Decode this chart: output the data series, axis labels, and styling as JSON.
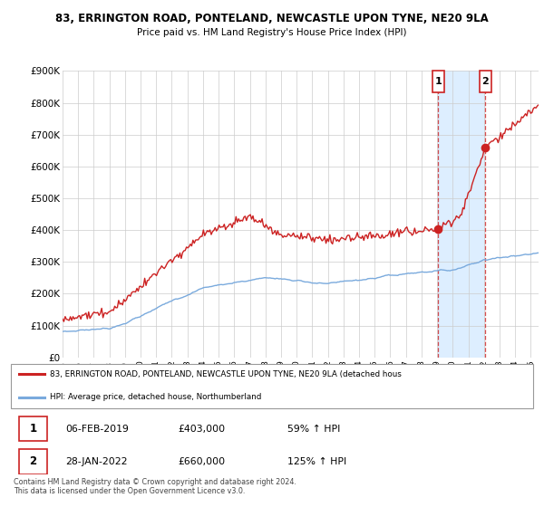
{
  "title": "83, ERRINGTON ROAD, PONTELAND, NEWCASTLE UPON TYNE, NE20 9LA",
  "subtitle": "Price paid vs. HM Land Registry's House Price Index (HPI)",
  "ylabel_ticks": [
    "£0",
    "£100K",
    "£200K",
    "£300K",
    "£400K",
    "£500K",
    "£600K",
    "£700K",
    "£800K",
    "£900K"
  ],
  "ylim": [
    0,
    900000
  ],
  "xlim_start": 1995.0,
  "xlim_end": 2025.5,
  "hpi_color": "#7aaadd",
  "price_color": "#cc2222",
  "shade_color": "#ddeeff",
  "marker1_date": 2019.08,
  "marker1_price": 403000,
  "marker2_date": 2022.08,
  "marker2_price": 660000,
  "legend_line1": "83, ERRINGTON ROAD, PONTELAND, NEWCASTLE UPON TYNE, NE20 9LA (detached hous",
  "legend_line2": "HPI: Average price, detached house, Northumberland",
  "table_row1": [
    "1",
    "06-FEB-2019",
    "£403,000",
    "59% ↑ HPI"
  ],
  "table_row2": [
    "2",
    "28-JAN-2022",
    "£660,000",
    "125% ↑ HPI"
  ],
  "footer": "Contains HM Land Registry data © Crown copyright and database right 2024.\nThis data is licensed under the Open Government Licence v3.0.",
  "bg_color": "#ffffff",
  "grid_color": "#cccccc"
}
